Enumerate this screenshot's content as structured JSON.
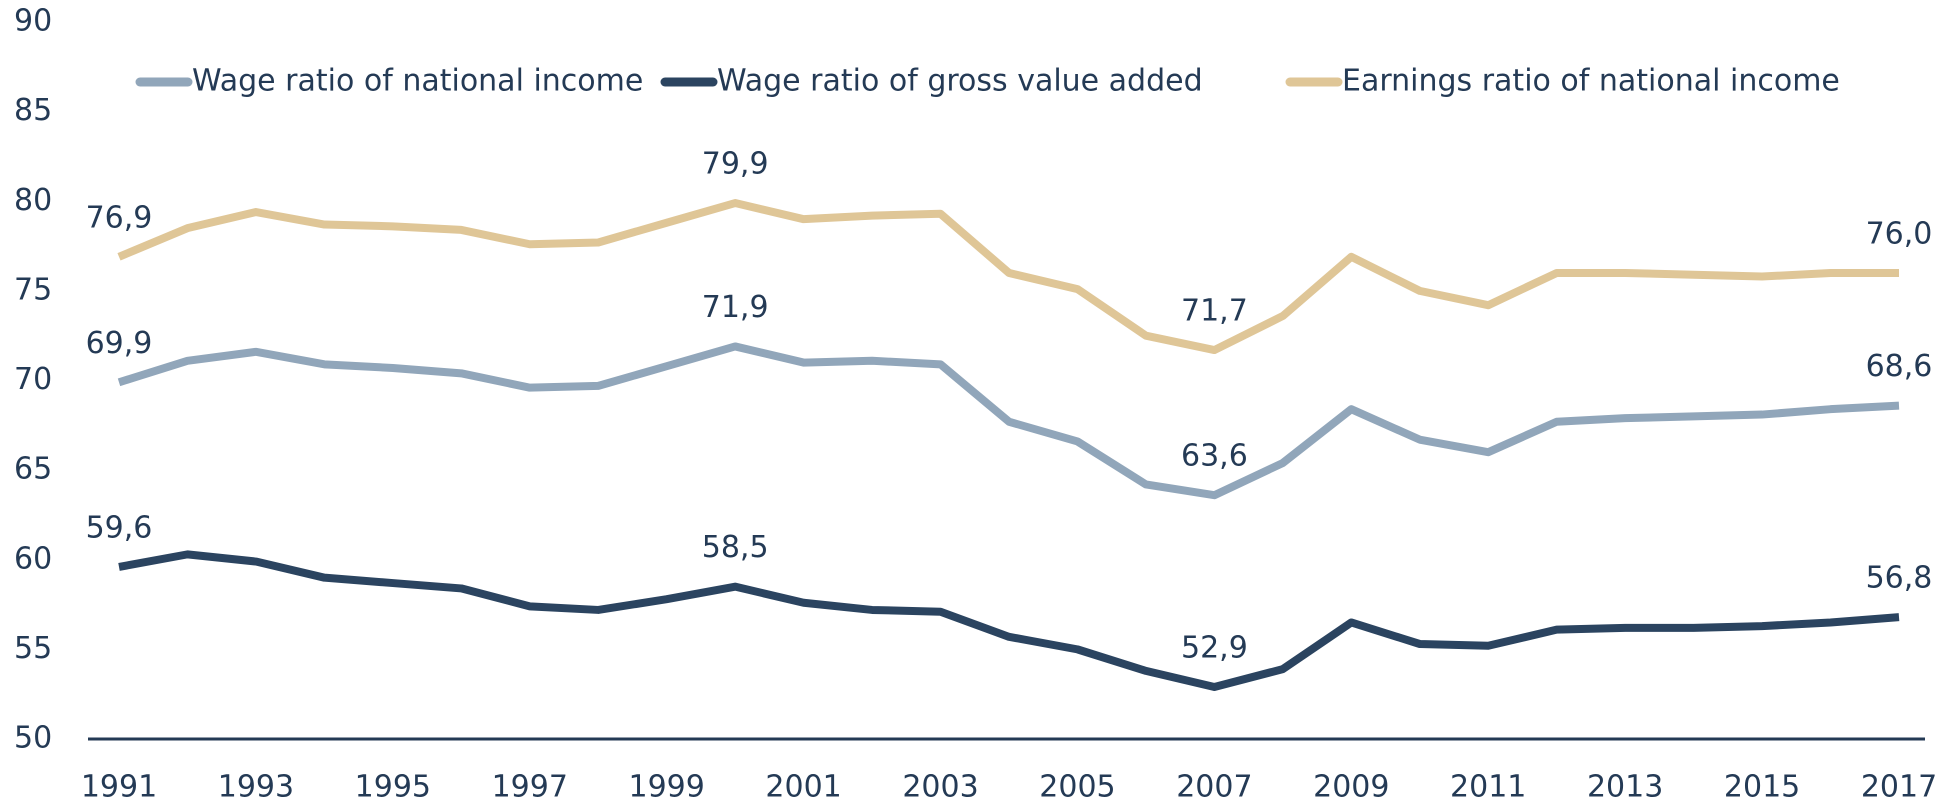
{
  "chart_data": {
    "type": "line",
    "x": [
      1991,
      1992,
      1993,
      1994,
      1995,
      1996,
      1997,
      1998,
      1999,
      2000,
      2001,
      2002,
      2003,
      2004,
      2005,
      2006,
      2007,
      2008,
      2009,
      2010,
      2011,
      2012,
      2013,
      2014,
      2015,
      2016,
      2017
    ],
    "xlim": [
      1991,
      2017
    ],
    "xticks": [
      1991,
      1993,
      1995,
      1997,
      1999,
      2001,
      2003,
      2005,
      2007,
      2009,
      2011,
      2013,
      2015,
      2017
    ],
    "ylim": [
      50,
      90
    ],
    "yticks": [
      50,
      55,
      60,
      65,
      70,
      75,
      80,
      85,
      90
    ],
    "grid": false,
    "legend": "top",
    "series": [
      {
        "name": "Wage ratio of national income",
        "color": "#91a6ba",
        "values": [
          69.9,
          71.1,
          71.6,
          70.9,
          70.7,
          70.4,
          69.6,
          69.7,
          70.8,
          71.9,
          71.0,
          71.1,
          70.9,
          67.7,
          66.6,
          64.2,
          63.6,
          65.4,
          68.4,
          66.7,
          66.0,
          67.7,
          67.9,
          68.0,
          68.1,
          68.4,
          68.6
        ],
        "value_labels": [
          "69,9",
          null,
          null,
          null,
          null,
          null,
          null,
          null,
          null,
          "71,9",
          null,
          null,
          null,
          null,
          null,
          null,
          "63,6",
          null,
          null,
          null,
          null,
          null,
          null,
          null,
          null,
          null,
          "68,6"
        ]
      },
      {
        "name": "Wage ratio of gross value added",
        "color": "#2b4460",
        "values": [
          59.6,
          60.3,
          59.9,
          59.0,
          58.7,
          58.4,
          57.4,
          57.2,
          57.8,
          58.5,
          57.6,
          57.2,
          57.1,
          55.7,
          55.0,
          53.8,
          52.9,
          53.9,
          56.5,
          55.3,
          55.2,
          56.1,
          56.2,
          56.2,
          56.3,
          56.5,
          56.8
        ],
        "value_labels": [
          "59,6",
          null,
          null,
          null,
          null,
          null,
          null,
          null,
          null,
          "58,5",
          null,
          null,
          null,
          null,
          null,
          null,
          "52,9",
          null,
          null,
          null,
          null,
          null,
          null,
          null,
          null,
          null,
          "56,8"
        ]
      },
      {
        "name": "Earnings ratio of national income",
        "color": "#dfc697",
        "values": [
          76.9,
          78.5,
          79.4,
          78.7,
          78.6,
          78.4,
          77.6,
          77.7,
          78.8,
          79.9,
          79.0,
          79.2,
          79.3,
          76.0,
          75.1,
          72.5,
          71.7,
          73.6,
          76.9,
          75.0,
          74.2,
          76.0,
          76.0,
          75.9,
          75.8,
          76.0,
          76.0
        ],
        "value_labels": [
          "76,9",
          null,
          null,
          null,
          null,
          null,
          null,
          null,
          null,
          "79,9",
          null,
          null,
          null,
          null,
          null,
          null,
          "71,7",
          null,
          null,
          null,
          null,
          null,
          null,
          null,
          null,
          null,
          "76,0"
        ]
      }
    ]
  }
}
